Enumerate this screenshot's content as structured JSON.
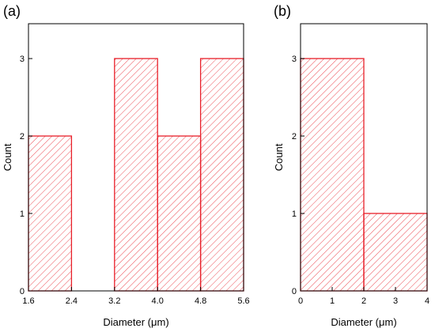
{
  "chart_data": [
    {
      "type": "bar",
      "panel_label": "(a)",
      "xlabel": "Diameter (μm)",
      "ylabel": "Count",
      "bin_edges": [
        1.6,
        2.4,
        3.2,
        4.0,
        4.8,
        5.6
      ],
      "values": [
        2,
        0,
        3,
        2,
        3
      ],
      "xlim": [
        1.6,
        5.6
      ],
      "ylim": [
        0,
        3.45
      ],
      "xticks": [
        1.6,
        2.4,
        3.2,
        4.0,
        4.8,
        5.6
      ],
      "xtick_labels": [
        "1.6",
        "2.4",
        "3.2",
        "4.0",
        "4.8",
        "5.6"
      ],
      "yticks": [
        0,
        1,
        2,
        3
      ],
      "ytick_labels": [
        "0",
        "1",
        "2",
        "3"
      ],
      "bar_color": "#e8202a",
      "fill": "diagonal-hatch",
      "grid": false
    },
    {
      "type": "bar",
      "panel_label": "(b)",
      "xlabel": "Diameter (μm)",
      "ylabel": "Count",
      "bin_edges": [
        0,
        2,
        4
      ],
      "values": [
        3,
        1
      ],
      "xlim": [
        0,
        4
      ],
      "ylim": [
        0,
        3.45
      ],
      "xticks": [
        0,
        1,
        2,
        3,
        4
      ],
      "xtick_labels": [
        "0",
        "1",
        "2",
        "3",
        "4"
      ],
      "yticks": [
        0,
        1,
        2,
        3
      ],
      "ytick_labels": [
        "0",
        "1",
        "2",
        "3"
      ],
      "bar_color": "#e8202a",
      "fill": "diagonal-hatch",
      "grid": false
    }
  ]
}
